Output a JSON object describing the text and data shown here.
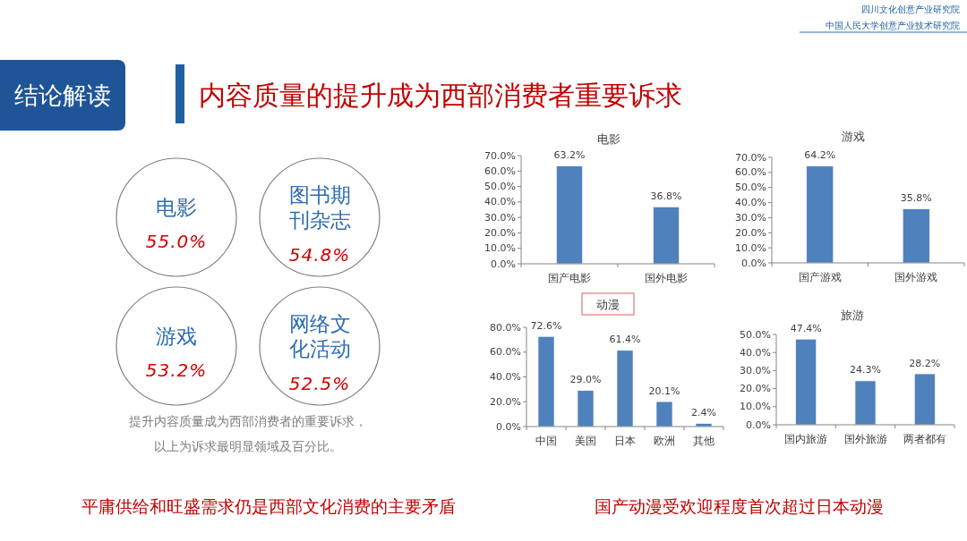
{
  "chart_data": [
    {
      "type": "other",
      "title": "内容质量的提升成为西部消费者重要诉求",
      "categories": [
        "电影",
        "图书期刊杂志",
        "游戏",
        "网络文化活动"
      ],
      "values": [
        55.0,
        54.8,
        53.2,
        52.5
      ],
      "value_labels": [
        "55.0%",
        "54.8%",
        "53.2%",
        "52.5%"
      ],
      "annotations": [
        "四川文化创意产业研究院",
        "中国人民大学创意产业技术研究院",
        "结论解读",
        "提升内容质量成为西部消费者的重要诉求，",
        "以上为诉求最明显领域及百分比。",
        "平庸供给和旺盛需求仍是西部文化消费的主要矛盾"
      ]
    },
    {
      "type": "bar",
      "title": "电影",
      "categories": [
        "国产电影",
        "国外电影"
      ],
      "values": [
        63.2,
        36.8
      ],
      "value_labels": [
        "63.2%",
        "36.8%"
      ],
      "color": "#4f81bd",
      "ylim": [
        0,
        70
      ],
      "yticks": [
        {
          "value": 0,
          "label": "0.0%"
        },
        {
          "value": 10,
          "label": "10.0%"
        },
        {
          "value": 20,
          "label": "20.0%"
        },
        {
          "value": 30,
          "label": "30.0%"
        },
        {
          "value": 40,
          "label": "40.0%"
        },
        {
          "value": 50,
          "label": "50.0%"
        },
        {
          "value": 60,
          "label": "60.0%"
        },
        {
          "value": 70,
          "label": "70.0%"
        }
      ]
    },
    {
      "type": "bar",
      "title": "游戏",
      "categories": [
        "国产游戏",
        "国外游戏"
      ],
      "values": [
        64.2,
        35.8
      ],
      "value_labels": [
        "64.2%",
        "35.8%"
      ],
      "color": "#4f81bd",
      "ylim": [
        0,
        70
      ],
      "yticks": [
        {
          "value": 0,
          "label": "0.0%"
        },
        {
          "value": 10,
          "label": "10.0%"
        },
        {
          "value": 20,
          "label": "20.0%"
        },
        {
          "value": 30,
          "label": "30.0%"
        },
        {
          "value": 40,
          "label": "40.0%"
        },
        {
          "value": 50,
          "label": "50.0%"
        },
        {
          "value": 60,
          "label": "60.0%"
        },
        {
          "value": 70,
          "label": "70.0%"
        }
      ]
    },
    {
      "type": "bar",
      "title": "动漫",
      "categories": [
        "中国",
        "美国",
        "日本",
        "欧洲",
        "其他"
      ],
      "values": [
        72.6,
        29.0,
        61.4,
        20.1,
        2.4
      ],
      "value_labels": [
        "72.6%",
        "29.0%",
        "61.4%",
        "20.1%",
        "2.4%"
      ],
      "color": "#4f81bd",
      "ylim": [
        0,
        80
      ],
      "yticks": [
        {
          "value": 0,
          "label": "0.0%"
        },
        {
          "value": 20,
          "label": "20.0%"
        },
        {
          "value": 40,
          "label": "40.0%"
        },
        {
          "value": 60,
          "label": "60.0%"
        },
        {
          "value": 80,
          "label": "80.0%"
        }
      ],
      "annotations": [
        "国产动漫受欢迎程度首次超过日本动漫"
      ]
    },
    {
      "type": "bar",
      "title": "旅游",
      "categories": [
        "国内旅游",
        "国外旅游",
        "两者都有"
      ],
      "values": [
        47.4,
        24.3,
        28.2
      ],
      "value_labels": [
        "47.4%",
        "24.3%",
        "28.2%"
      ],
      "color": "#4f81bd",
      "ylim": [
        0,
        50
      ],
      "yticks": [
        {
          "value": 0,
          "label": "0.0%"
        },
        {
          "value": 10,
          "label": "10.0%"
        },
        {
          "value": 20,
          "label": "20.0%"
        },
        {
          "value": 30,
          "label": "30.0%"
        },
        {
          "value": 40,
          "label": "40.0%"
        },
        {
          "value": 50,
          "label": "50.0%"
        }
      ]
    }
  ]
}
